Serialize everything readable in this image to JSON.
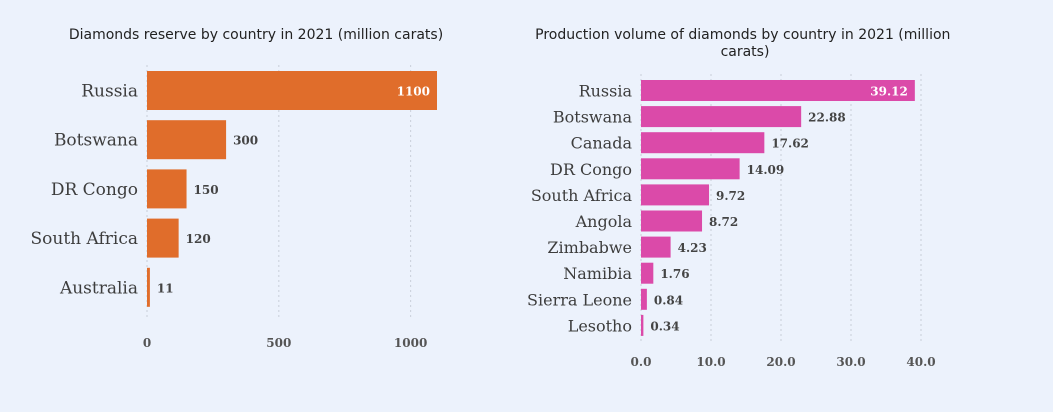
{
  "chart_data": [
    {
      "type": "bar",
      "orientation": "horizontal",
      "title": "Diamonds reserve by country in 2021 (million carats)",
      "xlabel": "",
      "ylabel": "",
      "categories": [
        "Russia",
        "Botswana",
        "DR Congo",
        "South Africa",
        "Australia"
      ],
      "values": [
        1100,
        300,
        150,
        120,
        11
      ],
      "value_labels": [
        "1100",
        "300",
        "150",
        "120",
        "11"
      ],
      "xlim": [
        0,
        1100
      ],
      "xticks": [
        0,
        500,
        1000
      ],
      "xtick_labels": [
        "0",
        "500",
        "1000"
      ],
      "grid": true,
      "color": "#e06d2b"
    },
    {
      "type": "bar",
      "orientation": "horizontal",
      "title": "Production volume of diamonds by country in 2021 (million carats)",
      "title_lines": [
        "Production volume of diamonds by country in 2021 (million",
        "carats)"
      ],
      "xlabel": "",
      "ylabel": "",
      "categories": [
        "Russia",
        "Botswana",
        "Canada",
        "DR Congo",
        "South Africa",
        "Angola",
        "Zimbabwe",
        "Namibia",
        "Sierra Leone",
        "Lesotho"
      ],
      "values": [
        39.12,
        22.88,
        17.62,
        14.09,
        9.72,
        8.72,
        4.23,
        1.76,
        0.84,
        0.34
      ],
      "value_labels": [
        "39.12",
        "22.88",
        "17.62",
        "14.09",
        "9.72",
        "8.72",
        "4.23",
        "1.76",
        "0.84",
        "0.34"
      ],
      "xlim": [
        0,
        40
      ],
      "xticks": [
        0,
        10,
        20,
        30,
        40
      ],
      "xtick_labels": [
        "0.0",
        "10.0",
        "20.0",
        "30.0",
        "40.0"
      ],
      "grid": true,
      "color": "#db4aa9"
    }
  ]
}
